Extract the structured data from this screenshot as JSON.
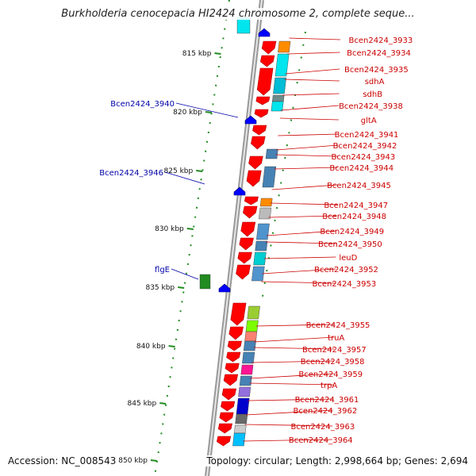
{
  "title": "Burkholderia cenocepacia HI2424 chromosome 2, complete seque...",
  "accession": "Accession: NC_008543",
  "summary": "Topology: circular; Length: 2,998,664 bp; Genes: 2,694",
  "ticks": [
    "815 kbp",
    "820 kbp",
    "825 kbp",
    "830 kbp",
    "835 kbp",
    "840 kbp",
    "845 kbp",
    "850 kbp"
  ],
  "left_labels": [
    "Bcen2424_3940",
    "Bcen2424_3946",
    "flgE"
  ],
  "right_labels": [
    "Bcen2424_3933",
    "Bcen2424_3934",
    "Bcen2424_3935",
    "sdhA",
    "sdhB",
    "Bcen2424_3938",
    "gltA",
    "Bcen2424_3941",
    "Bcen2424_3942",
    "Bcen2424_3943",
    "Bcen2424_3944",
    "Bcen2424_3945",
    "Bcen2424_3947",
    "Bcen2424_3948",
    "Bcen2424_3949",
    "Bcen2424_3950",
    "leuD",
    "Bcen2424_3952",
    "Bcen2424_3953",
    "Bcen2424_3955",
    "truA",
    "Bcen2424_3957",
    "Bcen2424_3958",
    "Bcen2424_3959",
    "trpA",
    "Bcen2424_3961",
    "Bcen2424_3962",
    "Bcen2424_3963",
    "Bcen2424_3964"
  ],
  "colors": {
    "forward_gene": "#ff0000",
    "reverse_gene": "#0000ff",
    "backbone": "#888888",
    "tick": "#228b22",
    "right_label": "#cc0000",
    "left_label": "#0000aa"
  }
}
